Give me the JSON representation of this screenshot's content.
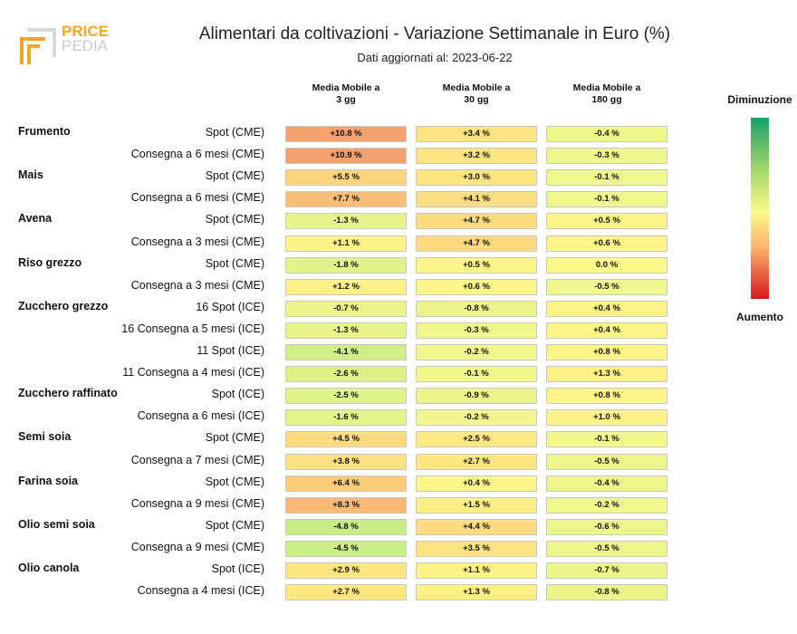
{
  "logo": {
    "text_top": "PRICE",
    "text_bottom": "PEDIA"
  },
  "header": {
    "title": "Alimentari da coltivazioni - Variazione Settimanale in Euro (%)",
    "subtitle": "Dati aggiornati al: 2023-06-22"
  },
  "legend": {
    "top_label": "Diminuzione",
    "bottom_label": "Aumento"
  },
  "colors": {
    "decrease": "#1aa068",
    "neutral": "#fcf989",
    "increase": "#d7191c"
  },
  "chart_data": {
    "type": "table",
    "title": "Alimentari da coltivazioni - Variazione Settimanale in Euro (%)",
    "columns": [
      {
        "line1": "Media Mobile a",
        "line2": "3 gg"
      },
      {
        "line1": "Media Mobile a",
        "line2": "30 gg"
      },
      {
        "line1": "Media Mobile a",
        "line2": "180 gg"
      }
    ],
    "rows": [
      {
        "group": "Frumento",
        "label": "Spot (CME)",
        "values": [
          10.8,
          3.4,
          -0.4
        ]
      },
      {
        "group": "",
        "label": "Consegna a 6 mesi (CME)",
        "values": [
          10.9,
          3.2,
          -0.3
        ]
      },
      {
        "group": "Mais",
        "label": "Spot (CME)",
        "values": [
          5.5,
          3.0,
          -0.1
        ]
      },
      {
        "group": "",
        "label": "Consegna a 6 mesi (CME)",
        "values": [
          7.7,
          4.1,
          -0.1
        ]
      },
      {
        "group": "Avena",
        "label": "Spot (CME)",
        "values": [
          -1.3,
          4.7,
          0.5
        ]
      },
      {
        "group": "",
        "label": "Consegna a 3 mesi (CME)",
        "values": [
          1.1,
          4.7,
          0.6
        ]
      },
      {
        "group": "Riso grezzo",
        "label": "Spot (CME)",
        "values": [
          -1.8,
          0.5,
          0.0
        ]
      },
      {
        "group": "",
        "label": "Consegna a 3 mesi (CME)",
        "values": [
          1.2,
          0.6,
          -0.5
        ]
      },
      {
        "group": "Zucchero grezzo",
        "label": "16 Spot (ICE)",
        "values": [
          -0.7,
          -0.8,
          0.4
        ]
      },
      {
        "group": "",
        "label": "16 Consegna a 5 mesi (ICE)",
        "values": [
          -1.3,
          -0.3,
          0.4
        ]
      },
      {
        "group": "",
        "label": "11 Spot (ICE)",
        "values": [
          -4.1,
          -0.2,
          0.8
        ]
      },
      {
        "group": "",
        "label": "11 Consegna a 4 mesi (ICE)",
        "values": [
          -2.6,
          -0.1,
          1.3
        ]
      },
      {
        "group": "Zucchero raffinato",
        "label": "Spot (ICE)",
        "values": [
          -2.5,
          -0.9,
          0.8
        ]
      },
      {
        "group": "",
        "label": "Consegna a 6 mesi (ICE)",
        "values": [
          -1.6,
          -0.2,
          1.0
        ]
      },
      {
        "group": "Semi soia",
        "label": "Spot (CME)",
        "values": [
          4.5,
          2.5,
          -0.1
        ]
      },
      {
        "group": "",
        "label": "Consegna a 7 mesi (CME)",
        "values": [
          3.8,
          2.7,
          -0.5
        ]
      },
      {
        "group": "Farina soia",
        "label": "Spot (CME)",
        "values": [
          6.4,
          0.4,
          -0.4
        ]
      },
      {
        "group": "",
        "label": "Consegna a 9 mesi (CME)",
        "values": [
          8.3,
          1.5,
          -0.2
        ]
      },
      {
        "group": "Olio semi soia",
        "label": "Spot (CME)",
        "values": [
          -4.8,
          4.4,
          -0.6
        ]
      },
      {
        "group": "",
        "label": "Consegna a 9 mesi (CME)",
        "values": [
          -4.5,
          3.5,
          -0.5
        ]
      },
      {
        "group": "Olio canola",
        "label": "Spot (ICE)",
        "values": [
          2.9,
          1.1,
          -0.7
        ]
      },
      {
        "group": "",
        "label": "Consegna a 4 mesi (ICE)",
        "values": [
          2.7,
          1.3,
          -0.8
        ]
      }
    ]
  }
}
